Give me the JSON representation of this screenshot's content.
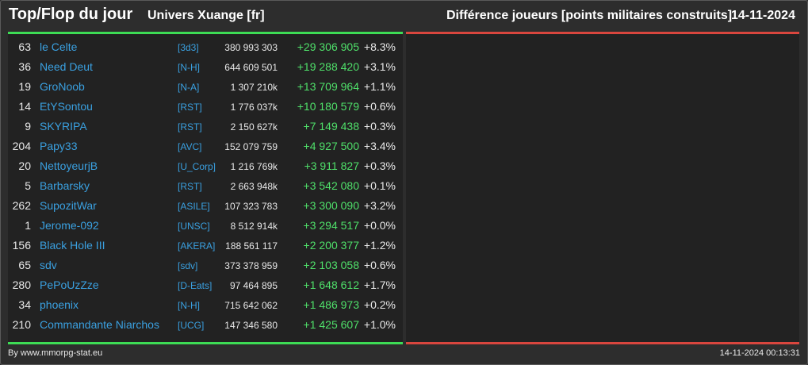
{
  "header": {
    "title": "Top/Flop du jour",
    "universe": "Univers Xuange [fr]",
    "subtitle": "Différence joueurs [points militaires construits]",
    "date": "14-11-2024"
  },
  "colors": {
    "background": "#2d2d2d",
    "panel": "#222222",
    "top_accent": "#3ddc55",
    "flop_accent": "#d9463e",
    "name_link": "#3aa0e0",
    "positive_diff": "#4fe06a"
  },
  "top_list": [
    {
      "rank": "63",
      "name": "le Celte",
      "alliance": "[3d3]",
      "points": "380 993 303",
      "diff": "+29 306 905",
      "pct": "+8.3%"
    },
    {
      "rank": "36",
      "name": "Need Deut",
      "alliance": "[N-H]",
      "points": "644 609 501",
      "diff": "+19 288 420",
      "pct": "+3.1%"
    },
    {
      "rank": "19",
      "name": "GroNoob",
      "alliance": "[N-A]",
      "points": "1 307 210k",
      "diff": "+13 709 964",
      "pct": "+1.1%"
    },
    {
      "rank": "14",
      "name": "EtYSontou",
      "alliance": "[RST]",
      "points": "1 776 037k",
      "diff": "+10 180 579",
      "pct": "+0.6%"
    },
    {
      "rank": "9",
      "name": "SKYRIPA",
      "alliance": "[RST]",
      "points": "2 150 627k",
      "diff": "+7 149 438",
      "pct": "+0.3%"
    },
    {
      "rank": "204",
      "name": "Papy33",
      "alliance": "[AVC]",
      "points": "152 079 759",
      "diff": "+4 927 500",
      "pct": "+3.4%"
    },
    {
      "rank": "20",
      "name": "NettoyeurjB",
      "alliance": "[U_Corp]",
      "points": "1 216 769k",
      "diff": "+3 911 827",
      "pct": "+0.3%"
    },
    {
      "rank": "5",
      "name": "Barbarsky",
      "alliance": "[RST]",
      "points": "2 663 948k",
      "diff": "+3 542 080",
      "pct": "+0.1%"
    },
    {
      "rank": "262",
      "name": "SupozitWar",
      "alliance": "[ASILE]",
      "points": "107 323 783",
      "diff": "+3 300 090",
      "pct": "+3.2%"
    },
    {
      "rank": "1",
      "name": "Jerome-092",
      "alliance": "[UNSC]",
      "points": "8 512 914k",
      "diff": "+3 294 517",
      "pct": "+0.0%"
    },
    {
      "rank": "156",
      "name": "Black Hole III",
      "alliance": "[AKERA]",
      "points": "188 561 117",
      "diff": "+2 200 377",
      "pct": "+1.2%"
    },
    {
      "rank": "65",
      "name": "sdv",
      "alliance": "[sdv]",
      "points": "373 378 959",
      "diff": "+2 103 058",
      "pct": "+0.6%"
    },
    {
      "rank": "280",
      "name": "PePoUzZze",
      "alliance": "[D-Eats]",
      "points": "97 464 895",
      "diff": "+1 648 612",
      "pct": "+1.7%"
    },
    {
      "rank": "34",
      "name": "phoenix",
      "alliance": "[N-H]",
      "points": "715 642 062",
      "diff": "+1 486 973",
      "pct": "+0.2%"
    },
    {
      "rank": "210",
      "name": "Commandante Niarchos",
      "alliance": "[UCG]",
      "points": "147 346 580",
      "diff": "+1 425 607",
      "pct": "+1.0%"
    }
  ],
  "footer": {
    "credit": "By www.mmorpg-stat.eu",
    "timestamp": "14-11-2024 00:13:31"
  }
}
